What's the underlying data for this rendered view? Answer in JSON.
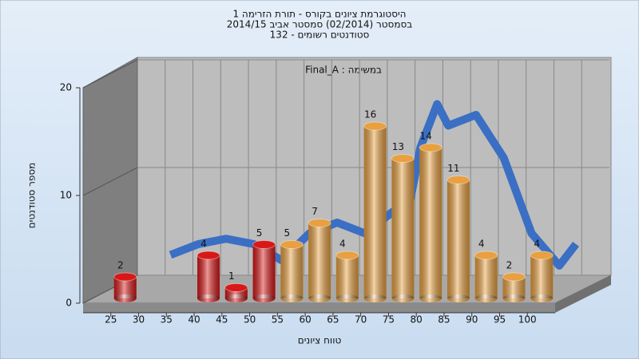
{
  "chart_data": {
    "type": "bar3d",
    "title": "היסטוגרמת ציונים בקורס - תורת הזרימה 1",
    "subtitle": "בסמסטר  (02/2014)  סמסטר אביב 2014/15",
    "subtitle2": "סטודנטים רשומים - 132",
    "annotation": "Final_A : במשימה",
    "xlabel": "טווח ציונים",
    "ylabel": "מספר סטודנטים",
    "x": [
      25,
      40,
      45,
      50,
      55,
      60,
      65,
      70,
      75,
      80,
      85,
      90,
      95,
      100
    ],
    "values": [
      2,
      4,
      1,
      5,
      5,
      7,
      4,
      16,
      13,
      14,
      11,
      4,
      2,
      4
    ],
    "colors": [
      "#d81818",
      "#d81818",
      "#d81818",
      "#d81818",
      "#e8a040",
      "#e8a040",
      "#e8a040",
      "#e8a040",
      "#e8a040",
      "#e8a040",
      "#e8a040",
      "#e8a040",
      "#e8a040",
      "#e8a040"
    ],
    "trend": {
      "color": "#3a6fc4",
      "x": [
        30,
        35,
        40,
        45,
        50,
        55,
        60,
        65,
        70,
        72,
        75,
        78,
        80,
        85,
        90,
        95,
        100,
        103
      ],
      "values": [
        3,
        4,
        4.5,
        4,
        2.5,
        5,
        6,
        5,
        7,
        5,
        13,
        17,
        15,
        16,
        12,
        5,
        2,
        4
      ]
    },
    "xlim": [
      20,
      105
    ],
    "xticks": [
      25,
      30,
      35,
      40,
      45,
      50,
      55,
      60,
      65,
      70,
      75,
      80,
      85,
      90,
      95,
      100
    ],
    "ylim": [
      0,
      20
    ],
    "yticks": [
      0,
      10,
      20
    ],
    "grid": true
  }
}
